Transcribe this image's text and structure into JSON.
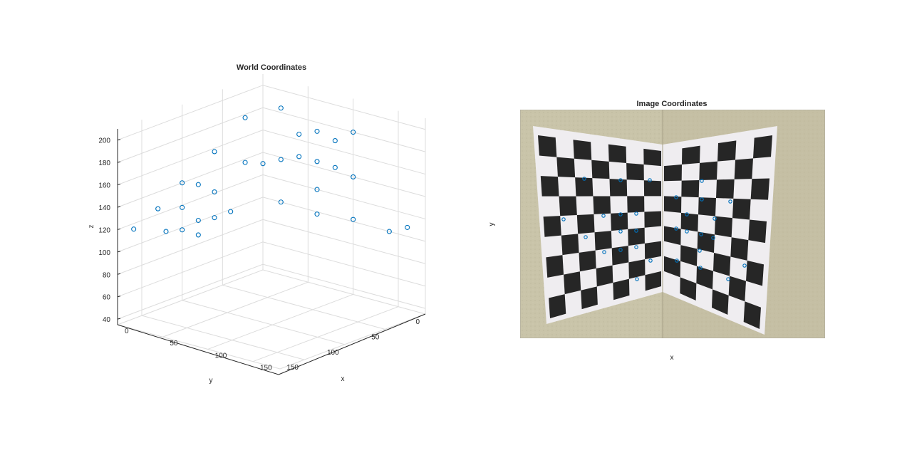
{
  "window": {
    "width": 1280,
    "height": 653
  },
  "colors": {
    "marker": "#0072bd",
    "axis": "#262626",
    "grid": "#dcdcdc"
  },
  "chart_data": [
    {
      "type": "scatter3d",
      "title": "World Coordinates",
      "xlabel": "x",
      "ylabel": "y",
      "zlabel": "z",
      "xlim": [
        0,
        180
      ],
      "ylim": [
        0,
        180
      ],
      "zlim": [
        35,
        210
      ],
      "x_ticks": [
        0,
        50,
        100,
        150
      ],
      "y_ticks": [
        0,
        50,
        100,
        150
      ],
      "z_ticks": [
        40,
        60,
        80,
        100,
        120,
        140,
        160,
        180,
        200
      ],
      "grid": true,
      "legend": "none",
      "points": [
        {
          "x": 0,
          "y": 22,
          "z": 177
        },
        {
          "x": 0,
          "y": 60,
          "z": 157
        },
        {
          "x": 0,
          "y": 100,
          "z": 140
        },
        {
          "x": 0,
          "y": 22,
          "z": 137
        },
        {
          "x": 0,
          "y": 60,
          "z": 121
        },
        {
          "x": 0,
          "y": 80,
          "z": 133
        },
        {
          "x": 0,
          "y": 100,
          "z": 118
        },
        {
          "x": 0,
          "y": 40,
          "z": 98
        },
        {
          "x": 0,
          "y": 60,
          "z": 98
        },
        {
          "x": 0,
          "y": 100,
          "z": 98
        },
        {
          "x": 0,
          "y": 80,
          "z": 88
        },
        {
          "x": 0,
          "y": 120,
          "z": 102
        },
        {
          "x": 0,
          "y": 0,
          "z": 130
        },
        {
          "x": 0,
          "y": 80,
          "z": 101
        },
        {
          "x": 0,
          "y": 130,
          "z": 125
        },
        {
          "x": 0,
          "y": 160,
          "z": 115
        },
        {
          "x": 20,
          "y": 0,
          "z": 184
        },
        {
          "x": 60,
          "y": 0,
          "z": 172
        },
        {
          "x": 40,
          "y": 0,
          "z": 165
        },
        {
          "x": 100,
          "y": 0,
          "z": 180
        },
        {
          "x": 80,
          "y": 0,
          "z": 168
        },
        {
          "x": 20,
          "y": 0,
          "z": 138
        },
        {
          "x": 40,
          "y": 0,
          "z": 145
        },
        {
          "x": 60,
          "y": 0,
          "z": 145
        },
        {
          "x": 80,
          "y": 0,
          "z": 144
        },
        {
          "x": 100,
          "y": 0,
          "z": 140
        },
        {
          "x": 60,
          "y": 0,
          "z": 120
        },
        {
          "x": 20,
          "y": 0,
          "z": 100
        },
        {
          "x": 60,
          "y": 0,
          "z": 98
        },
        {
          "x": 100,
          "y": 0,
          "z": 102
        },
        {
          "x": 140,
          "y": 0,
          "z": 100
        },
        {
          "x": 160,
          "y": 0,
          "z": 108
        }
      ]
    },
    {
      "type": "image",
      "title": "Image Coordinates",
      "xlabel": "x",
      "ylabel": "y",
      "legend": "none"
    }
  ]
}
